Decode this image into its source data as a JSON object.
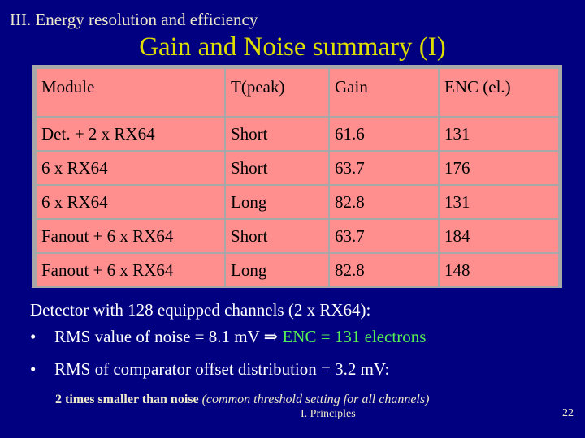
{
  "section_title": "III. Energy resolution and efficiency",
  "slide_title": "Gain and Noise summary (I)",
  "table": {
    "headers": [
      "Module",
      "T(peak)",
      "Gain",
      "ENC (el.)"
    ],
    "rows": [
      [
        "Det. + 2 x RX64",
        "Short",
        "61.6",
        "131"
      ],
      [
        "6 x RX64",
        "Short",
        "63.7",
        "176"
      ],
      [
        "6 x RX64",
        "Long",
        "82.8",
        "131"
      ],
      [
        "Fanout + 6 x RX64",
        "Short",
        "63.7",
        "184"
      ],
      [
        "Fanout + 6 x RX64",
        "Long",
        "82.8",
        "148"
      ]
    ]
  },
  "detector_text": "Detector with 128 equipped channels (2 x RX64):",
  "bullets": [
    {
      "text": "RMS value of noise = 8.1 mV",
      "arrow": "⇒",
      "result": "ENC = 131 electrons"
    },
    {
      "text": "RMS of comparator offset distribution = 3.2 mV:"
    }
  ],
  "note": {
    "bold": "2 times smaller than noise",
    "italic": "(common threshold setting for all channels)"
  },
  "footer": "I. Principles",
  "page_number": "22",
  "colors": {
    "background": "#000080",
    "title": "#dede00",
    "table_cell": "#ff8f8f",
    "table_border": "#a8a8a8",
    "highlight": "#55ee55"
  }
}
